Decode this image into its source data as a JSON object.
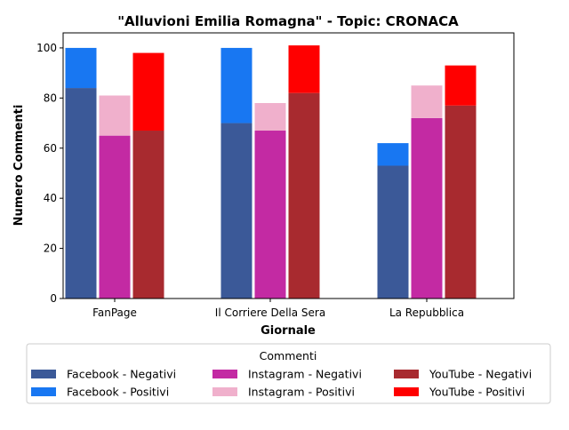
{
  "chart_data": {
    "type": "bar",
    "title": "\"Alluvioni Emilia Romagna\" - Topic: CRONACA",
    "xlabel": "Giornale",
    "ylabel": "Numero Commenti",
    "categories": [
      "FanPage",
      "Il Corriere Della Sera",
      "La Repubblica"
    ],
    "ylim": [
      0,
      106
    ],
    "yticks": [
      0,
      20,
      40,
      60,
      80,
      100
    ],
    "grid": false,
    "stacked_groups": true,
    "series": [
      {
        "name": "Facebook - Negativi",
        "platform": "Facebook",
        "stack_level": "base",
        "color": "#3b5998",
        "values": [
          84,
          70,
          53
        ]
      },
      {
        "name": "Facebook - Positivi",
        "platform": "Facebook",
        "stack_level": "top",
        "color": "#1877f2",
        "values": [
          16,
          30,
          9
        ]
      },
      {
        "name": "Instagram - Negativi",
        "platform": "Instagram",
        "stack_level": "base",
        "color": "#c32aa3",
        "values": [
          65,
          67,
          72
        ]
      },
      {
        "name": "Instagram - Positivi",
        "platform": "Instagram",
        "stack_level": "top",
        "color": "#f0b0cc",
        "values": [
          16,
          11,
          13
        ]
      },
      {
        "name": "YouTube - Negativi",
        "platform": "YouTube",
        "stack_level": "base",
        "color": "#a82a2f",
        "values": [
          67,
          82,
          77
        ]
      },
      {
        "name": "YouTube - Positivi",
        "platform": "YouTube",
        "stack_level": "top",
        "color": "#ff0000",
        "values": [
          31,
          19,
          16
        ]
      }
    ],
    "legend": {
      "title": "Commenti",
      "placement": "bottom-center",
      "columns": 3
    }
  }
}
